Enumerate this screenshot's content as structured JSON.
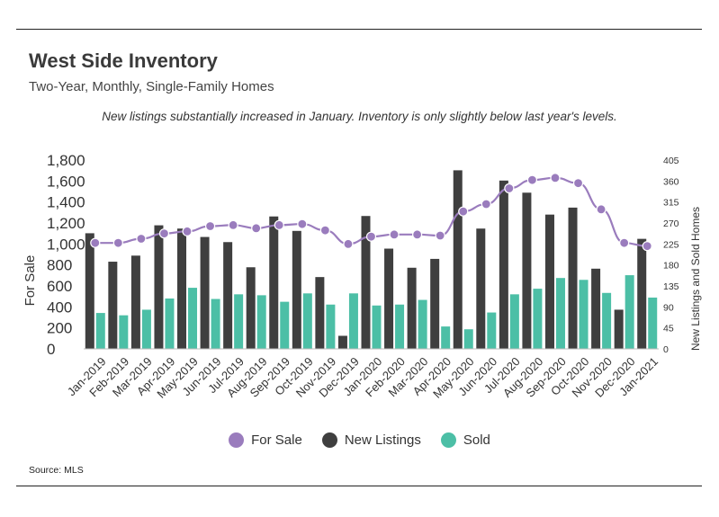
{
  "header": {
    "title": "West Side Inventory",
    "subtitle": "Two-Year, Monthly, Single-Family Homes",
    "annotation": "New listings substantially increased in January. Inventory is only slightly below last year's levels."
  },
  "footer": {
    "source": "Source:  MLS"
  },
  "colors": {
    "for_sale": "#9a7cbd",
    "new_listings": "#3f3f3f",
    "sold": "#4cbfa6"
  },
  "chart_data": {
    "type": "bar+line",
    "categories": [
      "Jan-2019",
      "Feb-2019",
      "Mar-2019",
      "Apr-2019",
      "May-2019",
      "Jun-2019",
      "Jul-2019",
      "Aug-2019",
      "Sep-2019",
      "Oct-2019",
      "Nov-2019",
      "Dec-2019",
      "Jan-2020",
      "Feb-2020",
      "Mar-2020",
      "Apr-2020",
      "May-2020",
      "Jun-2020",
      "Jul-2020",
      "Aug-2020",
      "Sep-2020",
      "Oct-2020",
      "Nov-2020",
      "Dec-2020",
      "Jan-2021"
    ],
    "left_axis": {
      "label": "For Sale",
      "range": [
        0,
        1800
      ],
      "ticks": [
        "0",
        "200",
        "400",
        "600",
        "800",
        "1,000",
        "1,200",
        "1,400",
        "1,600",
        "1,800"
      ]
    },
    "right_axis": {
      "label": "New Listings and Sold Homes",
      "range": [
        0,
        405
      ],
      "ticks": [
        "0",
        "45",
        "90",
        "135",
        "180",
        "225",
        "270",
        "315",
        "360",
        "405"
      ]
    },
    "series": [
      {
        "name": "For Sale",
        "type": "line",
        "axis": "left",
        "values": [
          1010,
          1010,
          1050,
          1100,
          1120,
          1170,
          1180,
          1150,
          1180,
          1190,
          1130,
          1000,
          1070,
          1090,
          1090,
          1080,
          1310,
          1380,
          1530,
          1610,
          1630,
          1580,
          1330,
          1010,
          980
        ]
      },
      {
        "name": "New Listings",
        "type": "bar",
        "axis": "right",
        "values": [
          248,
          187,
          200,
          265,
          258,
          240,
          229,
          175,
          284,
          253,
          154,
          28,
          285,
          215,
          174,
          193,
          383,
          258,
          361,
          335,
          288,
          303,
          172,
          84,
          236
        ]
      },
      {
        "name": "Sold",
        "type": "bar",
        "axis": "right",
        "values": [
          77,
          72,
          84,
          108,
          131,
          107,
          117,
          115,
          101,
          119,
          95,
          119,
          93,
          95,
          105,
          48,
          42,
          78,
          117,
          129,
          152,
          148,
          120,
          158,
          110
        ]
      }
    ],
    "legend": {
      "position": "bottom",
      "items": [
        "For Sale",
        "New Listings",
        "Sold"
      ]
    }
  }
}
